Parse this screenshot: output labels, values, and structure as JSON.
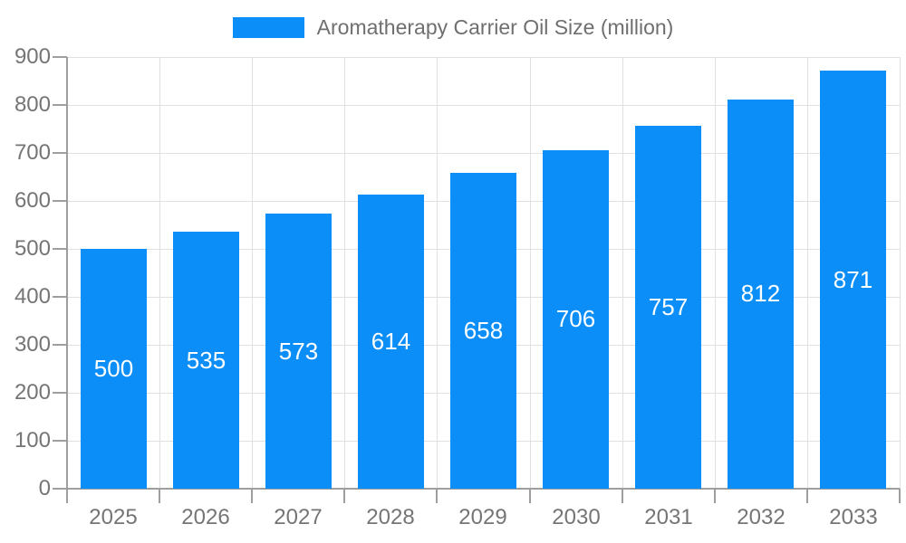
{
  "legend": {
    "label": "Aromatherapy Carrier Oil Size (million)"
  },
  "colors": {
    "bar": "#0b8ef8",
    "axis": "#9e9e9e",
    "grid": "#e0e0e0",
    "tick_label": "#757575",
    "legend_text": "#6f6f6f",
    "value_label": "#ffffff",
    "background": "#ffffff"
  },
  "chart_data": {
    "type": "bar",
    "title": "Aromatherapy Carrier Oil Size (million)",
    "series_name": "Aromatherapy Carrier Oil Size (million)",
    "categories": [
      "2025",
      "2026",
      "2027",
      "2028",
      "2029",
      "2030",
      "2031",
      "2032",
      "2033"
    ],
    "values": [
      500,
      535,
      573,
      614,
      658,
      706,
      757,
      812,
      871
    ],
    "xlabel": "",
    "ylabel": "",
    "ylim": [
      0,
      900
    ],
    "ytick_step": 100,
    "ytick_labels": [
      "0",
      "100",
      "200",
      "300",
      "400",
      "500",
      "600",
      "700",
      "800",
      "900"
    ],
    "grid": true,
    "legend_position": "top-center",
    "value_label_position": "inside-center"
  }
}
